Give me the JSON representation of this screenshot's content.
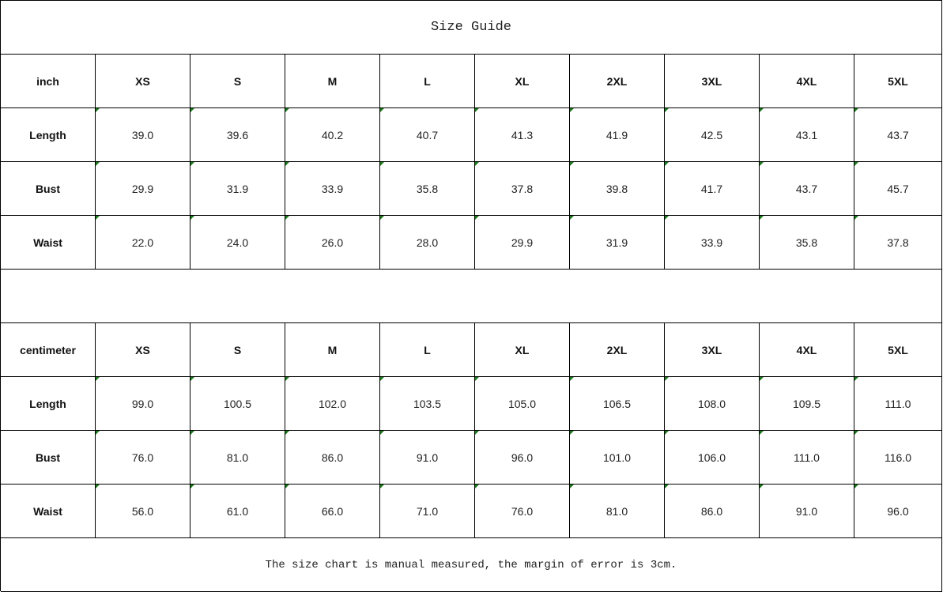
{
  "title": "Size Guide",
  "colors": {
    "comment_marker": "#1a7a1a",
    "border": "#000000"
  },
  "tables": [
    {
      "unit": "inch",
      "sizes": [
        "XS",
        "S",
        "M",
        "L",
        "XL",
        "2XL",
        "3XL",
        "4XL",
        "5XL"
      ],
      "rows": [
        {
          "label": "Length",
          "values": [
            "39.0",
            "39.6",
            "40.2",
            "40.7",
            "41.3",
            "41.9",
            "42.5",
            "43.1",
            "43.7"
          ]
        },
        {
          "label": "Bust",
          "values": [
            "29.9",
            "31.9",
            "33.9",
            "35.8",
            "37.8",
            "39.8",
            "41.7",
            "43.7",
            "45.7"
          ]
        },
        {
          "label": "Waist",
          "values": [
            "22.0",
            "24.0",
            "26.0",
            "28.0",
            "29.9",
            "31.9",
            "33.9",
            "35.8",
            "37.8"
          ]
        }
      ]
    },
    {
      "unit": "centimeter",
      "sizes": [
        "XS",
        "S",
        "M",
        "L",
        "XL",
        "2XL",
        "3XL",
        "4XL",
        "5XL"
      ],
      "rows": [
        {
          "label": "Length",
          "values": [
            "99.0",
            "100.5",
            "102.0",
            "103.5",
            "105.0",
            "106.5",
            "108.0",
            "109.5",
            "111.0"
          ]
        },
        {
          "label": "Bust",
          "values": [
            "76.0",
            "81.0",
            "86.0",
            "91.0",
            "96.0",
            "101.0",
            "106.0",
            "111.0",
            "116.0"
          ]
        },
        {
          "label": "Waist",
          "values": [
            "56.0",
            "61.0",
            "66.0",
            "71.0",
            "76.0",
            "81.0",
            "86.0",
            "91.0",
            "96.0"
          ]
        }
      ]
    }
  ],
  "note": "The size chart is manual measured, the margin of error is 3cm."
}
